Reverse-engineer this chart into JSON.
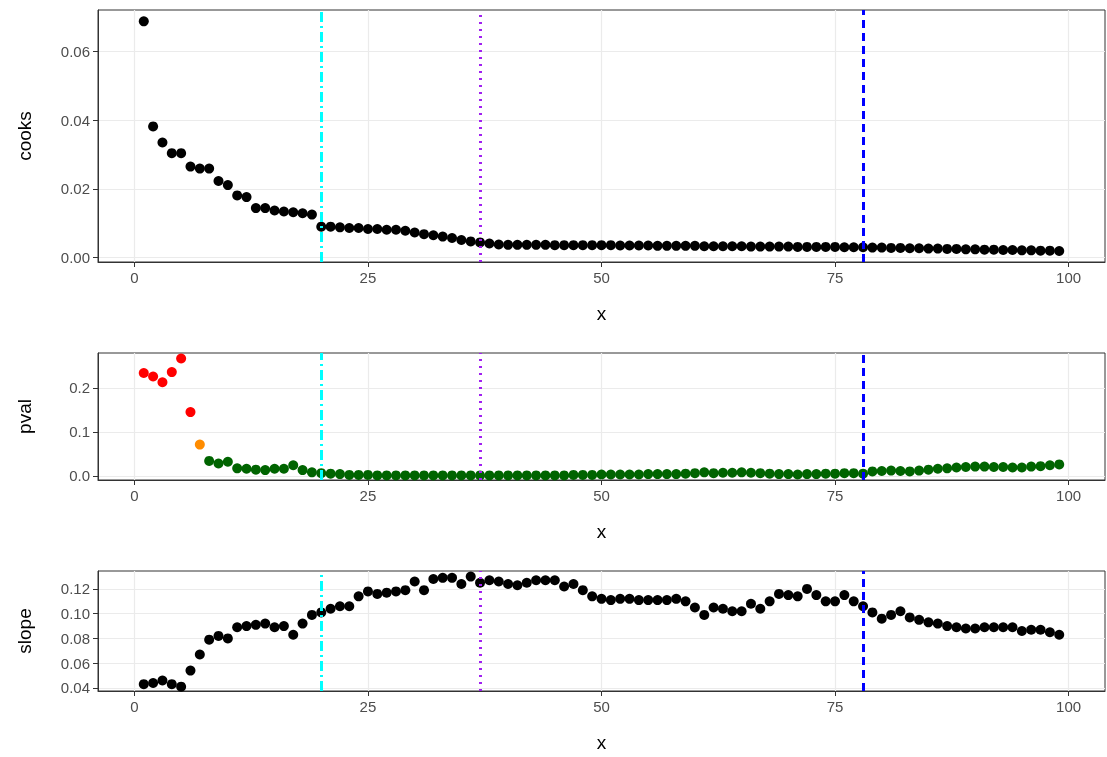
{
  "chart_data": [
    {
      "type": "scatter",
      "xlabel": "x",
      "ylabel": "cooks",
      "marker": "circle",
      "grid": true,
      "xlim": [
        -3.9,
        103.9
      ],
      "xticks": [
        0,
        25,
        50,
        75,
        100
      ],
      "ylim": [
        -0.0013,
        0.0721
      ],
      "yticks": [
        {
          "value": 0,
          "label": "0.00"
        },
        {
          "value": 0.02,
          "label": "0.02"
        },
        {
          "value": 0.04,
          "label": "0.04"
        },
        {
          "value": 0.06,
          "label": "0.06"
        }
      ],
      "x": [
        1,
        2,
        3,
        4,
        5,
        6,
        7,
        8,
        9,
        10,
        11,
        12,
        13,
        14,
        15,
        16,
        17,
        18,
        19,
        20,
        21,
        22,
        23,
        24,
        25,
        26,
        27,
        28,
        29,
        30,
        31,
        32,
        33,
        34,
        35,
        36,
        37,
        38,
        39,
        40,
        41,
        42,
        43,
        44,
        45,
        46,
        47,
        48,
        49,
        50,
        51,
        52,
        53,
        54,
        55,
        56,
        57,
        58,
        59,
        60,
        61,
        62,
        63,
        64,
        65,
        66,
        67,
        68,
        69,
        70,
        71,
        72,
        73,
        74,
        75,
        76,
        77,
        78,
        79,
        80,
        81,
        82,
        83,
        84,
        85,
        86,
        87,
        88,
        89,
        90,
        91,
        92,
        93,
        94,
        95,
        96,
        97,
        98,
        99
      ],
      "series": [
        {
          "color": "#000000",
          "values": [
            0.0688,
            0.0382,
            0.0335,
            0.0304,
            0.0304,
            0.0265,
            0.0259,
            0.0259,
            0.0223,
            0.0211,
            0.0181,
            0.0176,
            0.0144,
            0.0144,
            0.0137,
            0.0134,
            0.0132,
            0.0129,
            0.0125,
            0.009,
            0.009,
            0.0088,
            0.0086,
            0.0086,
            0.0083,
            0.0083,
            0.0081,
            0.0081,
            0.0078,
            0.0073,
            0.0068,
            0.0065,
            0.0061,
            0.0057,
            0.0051,
            0.0047,
            0.0044,
            0.0041,
            0.0038,
            0.0037,
            0.0037,
            0.0037,
            0.0037,
            0.0037,
            0.0036,
            0.0036,
            0.0036,
            0.0036,
            0.0036,
            0.0036,
            0.0036,
            0.0035,
            0.0035,
            0.0035,
            0.0035,
            0.0034,
            0.0034,
            0.0034,
            0.0034,
            0.0034,
            0.0033,
            0.0033,
            0.0033,
            0.0033,
            0.0033,
            0.0032,
            0.0032,
            0.0032,
            0.0032,
            0.0032,
            0.0031,
            0.0031,
            0.0031,
            0.0031,
            0.0031,
            0.003,
            0.003,
            0.003,
            0.0029,
            0.0029,
            0.0028,
            0.0028,
            0.0027,
            0.0027,
            0.0026,
            0.0026,
            0.0025,
            0.0025,
            0.0024,
            0.0024,
            0.0023,
            0.0023,
            0.0022,
            0.0022,
            0.0021,
            0.0021,
            0.002,
            0.002,
            0.0019
          ]
        }
      ],
      "ref_lines": [
        {
          "axis": "x",
          "value": 20,
          "color": "#00ffff",
          "line_style": "dashdot"
        },
        {
          "axis": "x",
          "value": 37,
          "color": "#a020f0",
          "line_style": "dotted"
        },
        {
          "axis": "x",
          "value": 78,
          "color": "#0000ff",
          "line_style": "dashed"
        }
      ]
    },
    {
      "type": "scatter",
      "xlabel": "x",
      "ylabel": "pval",
      "marker": "circle",
      "grid": true,
      "xlim": [
        -3.9,
        103.9
      ],
      "xticks": [
        0,
        25,
        50,
        75,
        100
      ],
      "ylim": [
        -0.0095,
        0.2795
      ],
      "yticks": [
        {
          "value": 0,
          "label": "0.0"
        },
        {
          "value": 0.1,
          "label": "0.1"
        },
        {
          "value": 0.2,
          "label": "0.2"
        }
      ],
      "x": [
        1,
        2,
        3,
        4,
        5,
        6,
        7,
        8,
        9,
        10,
        11,
        12,
        13,
        14,
        15,
        16,
        17,
        18,
        19,
        20,
        21,
        22,
        23,
        24,
        25,
        26,
        27,
        28,
        29,
        30,
        31,
        32,
        33,
        34,
        35,
        36,
        37,
        38,
        39,
        40,
        41,
        42,
        43,
        44,
        45,
        46,
        47,
        48,
        49,
        50,
        51,
        52,
        53,
        54,
        55,
        56,
        57,
        58,
        59,
        60,
        61,
        62,
        63,
        64,
        65,
        66,
        67,
        68,
        69,
        70,
        71,
        72,
        73,
        74,
        75,
        76,
        77,
        78,
        79,
        80,
        81,
        82,
        83,
        84,
        85,
        86,
        87,
        88,
        89,
        90,
        91,
        92,
        93,
        94,
        95,
        96,
        97,
        98,
        99
      ],
      "series": [
        {
          "colors": [
            "#ff0000",
            "#ff0000",
            "#ff0000",
            "#ff0000",
            "#ff0000",
            "#ff0000",
            "#ff8c00",
            "#006400",
            "#006400",
            "#006400",
            "#006400",
            "#006400",
            "#006400",
            "#006400",
            "#006400",
            "#006400",
            "#006400",
            "#006400",
            "#006400",
            "#006400",
            "#006400",
            "#006400",
            "#006400",
            "#006400",
            "#006400",
            "#006400",
            "#006400",
            "#006400",
            "#006400",
            "#006400",
            "#006400",
            "#006400",
            "#006400",
            "#006400",
            "#006400",
            "#006400",
            "#006400",
            "#006400",
            "#006400",
            "#006400",
            "#006400",
            "#006400",
            "#006400",
            "#006400",
            "#006400",
            "#006400",
            "#006400",
            "#006400",
            "#006400",
            "#006400",
            "#006400",
            "#006400",
            "#006400",
            "#006400",
            "#006400",
            "#006400",
            "#006400",
            "#006400",
            "#006400",
            "#006400",
            "#006400",
            "#006400",
            "#006400",
            "#006400",
            "#006400",
            "#006400",
            "#006400",
            "#006400",
            "#006400",
            "#006400",
            "#006400",
            "#006400",
            "#006400",
            "#006400",
            "#006400",
            "#006400",
            "#006400",
            "#006400",
            "#006400",
            "#006400",
            "#006400",
            "#006400",
            "#006400",
            "#006400",
            "#006400",
            "#006400",
            "#006400",
            "#006400",
            "#006400",
            "#006400",
            "#006400",
            "#006400",
            "#006400",
            "#006400",
            "#006400",
            "#006400",
            "#006400",
            "#006400",
            "#006400"
          ],
          "values": [
            0.234,
            0.226,
            0.213,
            0.236,
            0.267,
            0.145,
            0.071,
            0.034,
            0.028,
            0.032,
            0.017,
            0.016,
            0.014,
            0.013,
            0.016,
            0.016,
            0.024,
            0.013,
            0.008,
            0.006,
            0.005,
            0.004,
            0.002,
            0.002,
            0.002,
            0.001,
            0.001,
            0.001,
            0.001,
            0.001,
            0.001,
            0.001,
            0.001,
            0.001,
            0.001,
            0.001,
            0.001,
            0.001,
            0.001,
            0.001,
            0.001,
            0.001,
            0.001,
            0.001,
            0.001,
            0.001,
            0.002,
            0.002,
            0.002,
            0.003,
            0.003,
            0.003,
            0.003,
            0.003,
            0.004,
            0.004,
            0.004,
            0.004,
            0.005,
            0.006,
            0.008,
            0.006,
            0.007,
            0.007,
            0.008,
            0.007,
            0.006,
            0.005,
            0.004,
            0.004,
            0.003,
            0.004,
            0.004,
            0.005,
            0.005,
            0.006,
            0.006,
            0.005,
            0.01,
            0.011,
            0.012,
            0.011,
            0.01,
            0.012,
            0.014,
            0.016,
            0.017,
            0.019,
            0.02,
            0.021,
            0.021,
            0.02,
            0.02,
            0.019,
            0.019,
            0.021,
            0.022,
            0.024,
            0.026
          ]
        }
      ],
      "ref_lines": [
        {
          "axis": "x",
          "value": 20,
          "color": "#00ffff",
          "line_style": "dashdot"
        },
        {
          "axis": "x",
          "value": 37,
          "color": "#a020f0",
          "line_style": "dotted"
        },
        {
          "axis": "x",
          "value": 78,
          "color": "#0000ff",
          "line_style": "dashed"
        }
      ]
    },
    {
      "type": "scatter",
      "xlabel": "x",
      "ylabel": "slope",
      "marker": "circle",
      "grid": true,
      "xlim": [
        -3.9,
        103.9
      ],
      "xticks": [
        0,
        25,
        50,
        75,
        100
      ],
      "ylim": [
        0.0375,
        0.1345
      ],
      "yticks": [
        {
          "value": 0.04,
          "label": "0.04"
        },
        {
          "value": 0.06,
          "label": "0.06"
        },
        {
          "value": 0.08,
          "label": "0.08"
        },
        {
          "value": 0.1,
          "label": "0.10"
        },
        {
          "value": 0.12,
          "label": "0.12"
        }
      ],
      "x": [
        1,
        2,
        3,
        4,
        5,
        6,
        7,
        8,
        9,
        10,
        11,
        12,
        13,
        14,
        15,
        16,
        17,
        18,
        19,
        20,
        21,
        22,
        23,
        24,
        25,
        26,
        27,
        28,
        29,
        30,
        31,
        32,
        33,
        34,
        35,
        36,
        37,
        38,
        39,
        40,
        41,
        42,
        43,
        44,
        45,
        46,
        47,
        48,
        49,
        50,
        51,
        52,
        53,
        54,
        55,
        56,
        57,
        58,
        59,
        60,
        61,
        62,
        63,
        64,
        65,
        66,
        67,
        68,
        69,
        70,
        71,
        72,
        73,
        74,
        75,
        76,
        77,
        78,
        79,
        80,
        81,
        82,
        83,
        84,
        85,
        86,
        87,
        88,
        89,
        90,
        91,
        92,
        93,
        94,
        95,
        96,
        97,
        98,
        99
      ],
      "series": [
        {
          "color": "#000000",
          "values": [
            0.043,
            0.044,
            0.046,
            0.043,
            0.041,
            0.054,
            0.067,
            0.079,
            0.082,
            0.08,
            0.089,
            0.09,
            0.091,
            0.092,
            0.089,
            0.09,
            0.083,
            0.092,
            0.099,
            0.101,
            0.104,
            0.106,
            0.106,
            0.114,
            0.118,
            0.116,
            0.117,
            0.118,
            0.119,
            0.126,
            0.119,
            0.128,
            0.129,
            0.129,
            0.124,
            0.13,
            0.125,
            0.127,
            0.126,
            0.124,
            0.123,
            0.125,
            0.127,
            0.127,
            0.127,
            0.122,
            0.124,
            0.119,
            0.114,
            0.112,
            0.111,
            0.112,
            0.112,
            0.111,
            0.111,
            0.111,
            0.111,
            0.112,
            0.11,
            0.105,
            0.099,
            0.105,
            0.104,
            0.102,
            0.102,
            0.108,
            0.104,
            0.11,
            0.116,
            0.115,
            0.114,
            0.12,
            0.115,
            0.11,
            0.11,
            0.115,
            0.11,
            0.106,
            0.101,
            0.096,
            0.099,
            0.102,
            0.097,
            0.095,
            0.093,
            0.092,
            0.09,
            0.089,
            0.088,
            0.088,
            0.089,
            0.089,
            0.089,
            0.089,
            0.086,
            0.087,
            0.087,
            0.085,
            0.083
          ]
        }
      ],
      "ref_lines": [
        {
          "axis": "x",
          "value": 20,
          "color": "#00ffff",
          "line_style": "dashdot"
        },
        {
          "axis": "x",
          "value": 37,
          "color": "#a020f0",
          "line_style": "dotted"
        },
        {
          "axis": "x",
          "value": 78,
          "color": "#0000ff",
          "line_style": "dashed"
        }
      ]
    }
  ]
}
